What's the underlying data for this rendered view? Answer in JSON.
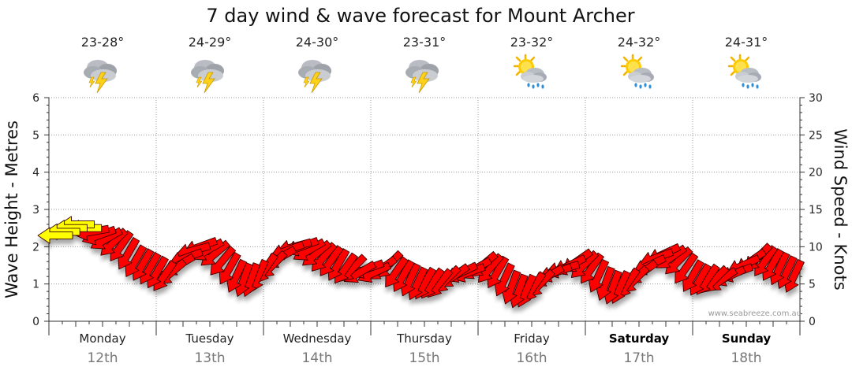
{
  "chart_data": {
    "type": "line",
    "title": "7 day wind & wave forecast for Mount Archer",
    "ylabel_left": "Wave Height - Metres",
    "ylabel_right": "Wind Speed - Knots",
    "ylim_left": [
      0,
      6
    ],
    "ylim_right": [
      0,
      30
    ],
    "yticks_left": [
      "0",
      "1",
      "2",
      "3",
      "4",
      "5",
      "6"
    ],
    "yticks_right": [
      "0",
      "5",
      "10",
      "15",
      "20",
      "25",
      "30"
    ],
    "grid": true,
    "watermark": "www.seabreeze.com.au",
    "days": [
      {
        "day": "Monday",
        "date": "12th",
        "temp": "23-28°",
        "icon": "thunderstorm-icon",
        "weekend": false
      },
      {
        "day": "Tuesday",
        "date": "13th",
        "temp": "24-29°",
        "icon": "thunderstorm-icon",
        "weekend": false
      },
      {
        "day": "Wednesday",
        "date": "14th",
        "temp": "24-30°",
        "icon": "thunderstorm-icon",
        "weekend": false
      },
      {
        "day": "Thursday",
        "date": "15th",
        "temp": "23-31°",
        "icon": "thunderstorm-icon",
        "weekend": false
      },
      {
        "day": "Friday",
        "date": "16th",
        "temp": "23-32°",
        "icon": "sun-cloud-rain-icon",
        "weekend": false
      },
      {
        "day": "Saturday",
        "date": "17th",
        "temp": "24-32°",
        "icon": "sun-cloud-rain-icon",
        "weekend": true
      },
      {
        "day": "Sunday",
        "date": "18th",
        "temp": "24-31°",
        "icon": "sun-cloud-rain-icon",
        "weekend": true
      }
    ],
    "series": [
      {
        "name": "Wind Speed",
        "unit": "knots",
        "color": "#ff0000",
        "highlight_color": "#ffff00",
        "highlight_count": 5,
        "values": [
          11.5,
          12,
          12.5,
          13,
          12.5,
          12,
          11.5,
          11,
          10.5,
          10,
          9,
          8,
          7.5,
          7,
          6.5,
          6,
          6.5,
          7.5,
          8.5,
          9.5,
          10,
          9.5,
          9,
          8,
          7,
          6,
          5.5,
          5.5,
          6,
          7,
          7.5,
          8.5,
          9.5,
          10,
          10,
          9.5,
          9,
          8.5,
          8,
          7.5,
          7,
          7,
          6.5,
          7,
          6.5,
          7,
          7.5,
          6.5,
          6,
          5.5,
          5,
          5,
          5,
          5,
          5.5,
          6,
          6.5,
          6.5,
          7,
          7.5,
          7,
          6.5,
          5.5,
          4.5,
          4,
          4,
          4.5,
          5,
          6,
          6.5,
          7,
          7.5,
          8,
          7.5,
          7,
          6,
          5,
          4.5,
          4.5,
          5,
          5.5,
          6.5,
          7.5,
          8.5,
          9,
          8.5,
          8,
          7,
          6,
          5.5,
          5.5,
          5.5,
          5.5,
          6,
          6.5,
          7.5,
          8,
          8.5,
          8,
          7.5,
          7,
          6.5,
          6
        ],
        "directions_deg": [
          270,
          270,
          270,
          270,
          270,
          260,
          250,
          240,
          225,
          215,
          210,
          210,
          210,
          210,
          210,
          215,
          230,
          240,
          250,
          255,
          250,
          240,
          230,
          220,
          210,
          205,
          200,
          200,
          205,
          215,
          225,
          240,
          250,
          255,
          250,
          240,
          230,
          220,
          215,
          210,
          215,
          225,
          240,
          250,
          245,
          235,
          225,
          215,
          210,
          205,
          205,
          210,
          215,
          220,
          225,
          235,
          245,
          250,
          240,
          230,
          220,
          210,
          205,
          200,
          200,
          205,
          215,
          225,
          240,
          250,
          255,
          245,
          235,
          225,
          215,
          205,
          200,
          200,
          205,
          215,
          225,
          235,
          245,
          250,
          245,
          235,
          225,
          215,
          210,
          210,
          215,
          225,
          235,
          245,
          250,
          245,
          235,
          225,
          215,
          210,
          205,
          205,
          205
        ]
      }
    ]
  }
}
